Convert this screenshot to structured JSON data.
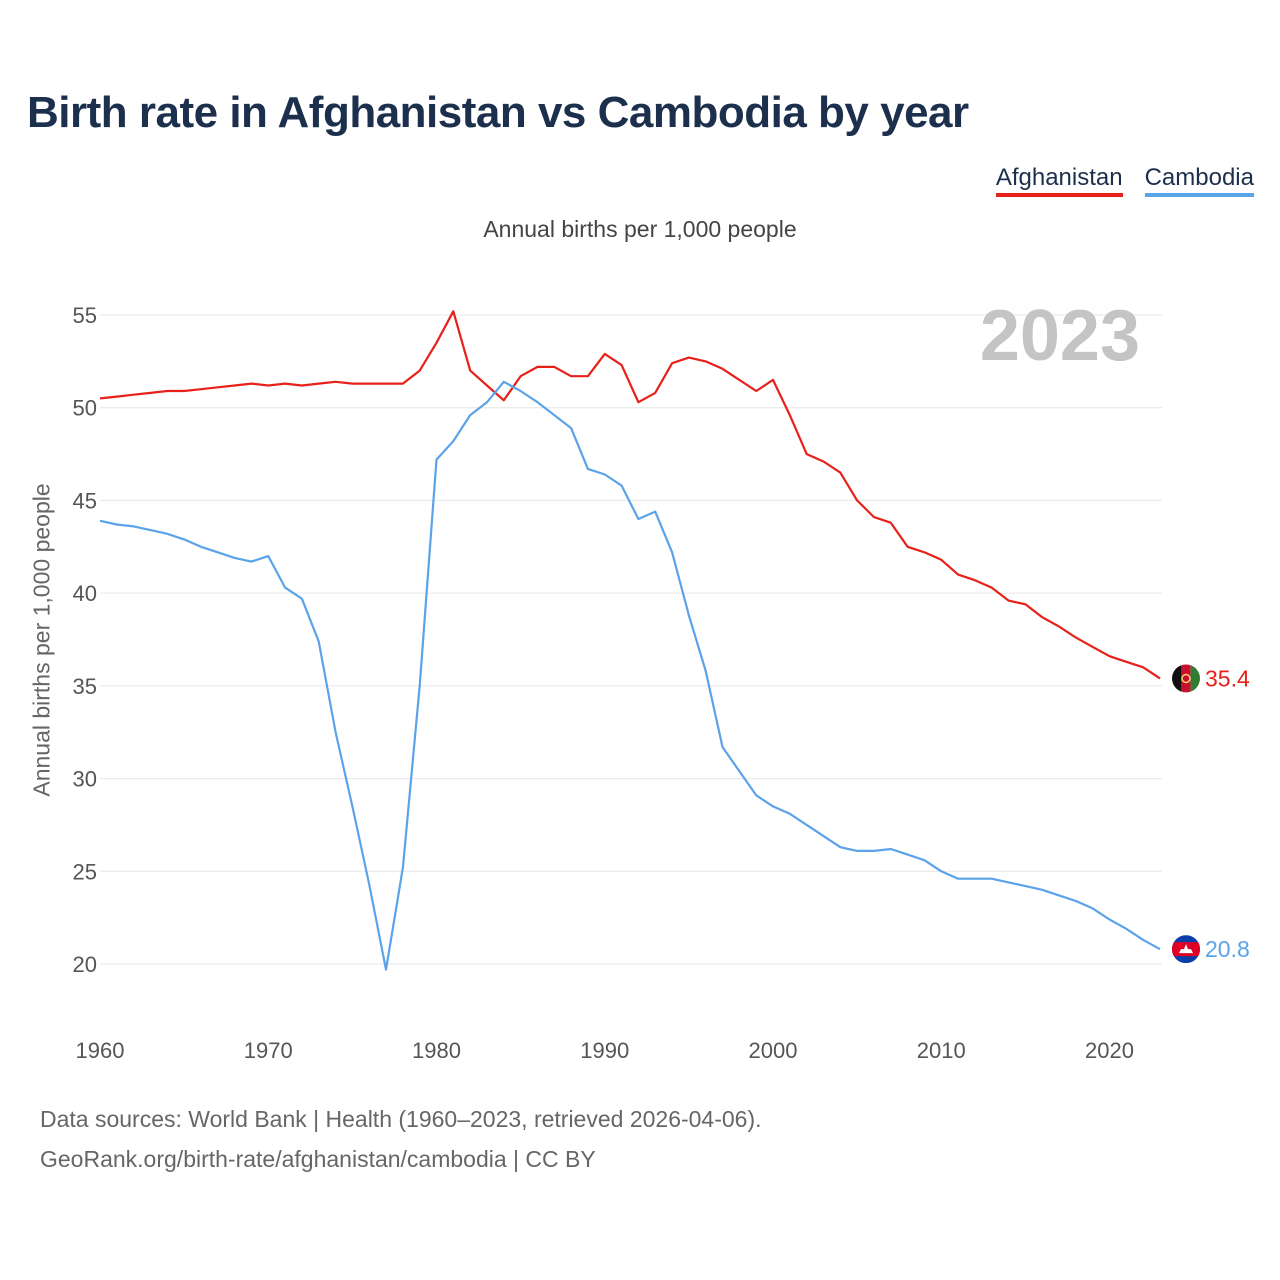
{
  "title": "Birth rate in Afghanistan vs Cambodia by year",
  "subtitle": "Annual births per 1,000 people",
  "footer": {
    "sources": "Data sources: World Bank | Health (1960–2023, retrieved 2026-04-06).",
    "link": "GeoRank.org/birth-rate/afghanistan/cambodia | CC BY"
  },
  "chart_data": {
    "type": "line",
    "title": "Birth rate in Afghanistan vs Cambodia by year",
    "subtitle": "Annual births per 1,000 people",
    "xlabel": "",
    "ylabel": "Annual births per 1,000 people",
    "xlim": [
      1960,
      2023
    ],
    "ylim": [
      17,
      56
    ],
    "yticks": [
      20,
      25,
      30,
      35,
      40,
      45,
      50,
      55
    ],
    "xticks": [
      1960,
      1970,
      1980,
      1990,
      2000,
      2010,
      2020
    ],
    "grid": true,
    "legend_position": "top-right",
    "year_annotation": "2023",
    "x": [
      1960,
      1961,
      1962,
      1963,
      1964,
      1965,
      1966,
      1967,
      1968,
      1969,
      1970,
      1971,
      1972,
      1973,
      1974,
      1975,
      1976,
      1977,
      1978,
      1979,
      1980,
      1981,
      1982,
      1983,
      1984,
      1985,
      1986,
      1987,
      1988,
      1989,
      1990,
      1991,
      1992,
      1993,
      1994,
      1995,
      1996,
      1997,
      1998,
      1999,
      2000,
      2001,
      2002,
      2003,
      2004,
      2005,
      2006,
      2007,
      2008,
      2009,
      2010,
      2011,
      2012,
      2013,
      2014,
      2015,
      2016,
      2017,
      2018,
      2019,
      2020,
      2021,
      2022,
      2023
    ],
    "series": [
      {
        "name": "Afghanistan",
        "color": "#e8201a",
        "end_label": "35.4",
        "values": [
          50.5,
          50.6,
          50.7,
          50.8,
          50.9,
          50.9,
          51.0,
          51.1,
          51.2,
          51.3,
          51.2,
          51.3,
          51.2,
          51.3,
          51.4,
          51.3,
          51.3,
          51.3,
          51.3,
          52.0,
          53.5,
          55.2,
          52.0,
          51.2,
          50.4,
          51.7,
          52.2,
          52.2,
          51.7,
          51.7,
          52.9,
          52.3,
          50.3,
          50.8,
          52.4,
          52.7,
          52.5,
          52.1,
          51.5,
          50.9,
          51.5,
          49.6,
          47.5,
          47.1,
          46.5,
          45.0,
          44.1,
          43.8,
          42.5,
          42.2,
          41.8,
          41.0,
          40.7,
          40.3,
          39.6,
          39.4,
          38.7,
          38.2,
          37.6,
          37.1,
          36.6,
          36.3,
          36.0,
          35.4
        ]
      },
      {
        "name": "Cambodia",
        "color": "#5ba3e8",
        "end_label": "20.8",
        "values": [
          43.9,
          43.7,
          43.6,
          43.4,
          43.2,
          42.9,
          42.5,
          42.2,
          41.9,
          41.7,
          42.0,
          40.3,
          39.7,
          37.4,
          32.5,
          28.5,
          24.3,
          19.7,
          25.2,
          35.0,
          47.2,
          48.2,
          49.6,
          50.3,
          51.4,
          50.9,
          50.3,
          49.6,
          48.9,
          46.7,
          46.4,
          45.8,
          44.0,
          44.4,
          42.2,
          38.8,
          35.8,
          31.7,
          30.4,
          29.1,
          28.5,
          28.1,
          27.5,
          26.9,
          26.3,
          26.1,
          26.1,
          26.2,
          25.9,
          25.6,
          25.0,
          24.6,
          24.6,
          24.6,
          24.4,
          24.2,
          24.0,
          23.7,
          23.4,
          23.0,
          22.4,
          21.9,
          21.3,
          20.8
        ]
      }
    ]
  }
}
